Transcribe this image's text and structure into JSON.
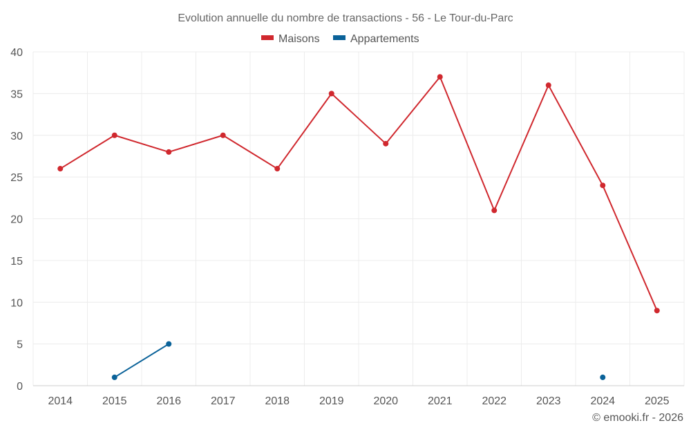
{
  "chart_data": {
    "type": "line",
    "title": "Evolution annuelle du nombre de transactions - 56 - Le Tour-du-Parc",
    "categories": [
      "2014",
      "2015",
      "2016",
      "2017",
      "2018",
      "2019",
      "2020",
      "2021",
      "2022",
      "2023",
      "2024",
      "2025"
    ],
    "series": [
      {
        "name": "Maisons",
        "color": "#d0282e",
        "values": [
          26,
          30,
          28,
          30,
          26,
          35,
          29,
          37,
          21,
          36,
          24,
          9
        ]
      },
      {
        "name": "Appartements",
        "color": "#0a6299",
        "values": [
          null,
          1,
          5,
          null,
          null,
          null,
          null,
          null,
          null,
          null,
          1,
          null
        ]
      }
    ],
    "ylim": [
      0,
      40
    ],
    "yticks": [
      0,
      5,
      10,
      15,
      20,
      25,
      30,
      35,
      40
    ],
    "xlabel": "",
    "ylabel": "",
    "grid": true,
    "legend": "top-center"
  },
  "credit": "© emooki.fr - 2026"
}
